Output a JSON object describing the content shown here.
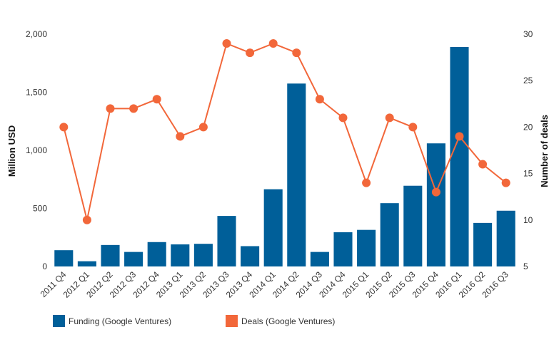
{
  "chart_data": {
    "type": "bar",
    "categories": [
      "2011 Q4",
      "2012 Q1",
      "2012 Q2",
      "2012 Q3",
      "2012 Q4",
      "2013 Q1",
      "2013 Q2",
      "2013 Q3",
      "2013 Q4",
      "2014 Q1",
      "2014 Q2",
      "2014 Q3",
      "2014 Q4",
      "2015 Q1",
      "2015 Q2",
      "2015 Q3",
      "2015 Q4",
      "2016 Q1",
      "2016 Q2",
      "2016 Q3"
    ],
    "series": [
      {
        "name": "Funding (Google Ventures)",
        "type": "bar",
        "axis": "left",
        "color": "#005f99",
        "values": [
          140,
          45,
          185,
          125,
          210,
          190,
          195,
          435,
          175,
          665,
          1575,
          125,
          295,
          315,
          545,
          695,
          1060,
          1890,
          375,
          480
        ]
      },
      {
        "name": "Deals (Google Ventures)",
        "type": "line",
        "axis": "right",
        "color": "#f2673a",
        "values": [
          20,
          10,
          22,
          22,
          23,
          19,
          20,
          29,
          28,
          29,
          28,
          23,
          21,
          14,
          21,
          20,
          13,
          19,
          16,
          14
        ]
      }
    ],
    "ylabel": "Million USD",
    "ylim": [
      0,
      2000
    ],
    "yticks": [
      "0",
      "500",
      "1,000",
      "1,500",
      "2,000"
    ],
    "y2label": "Number of deals",
    "y2lim": [
      5,
      30
    ],
    "y2ticks": [
      "5",
      "10",
      "15",
      "20",
      "25",
      "30"
    ],
    "grid": false,
    "legend_position": "bottom-left"
  }
}
